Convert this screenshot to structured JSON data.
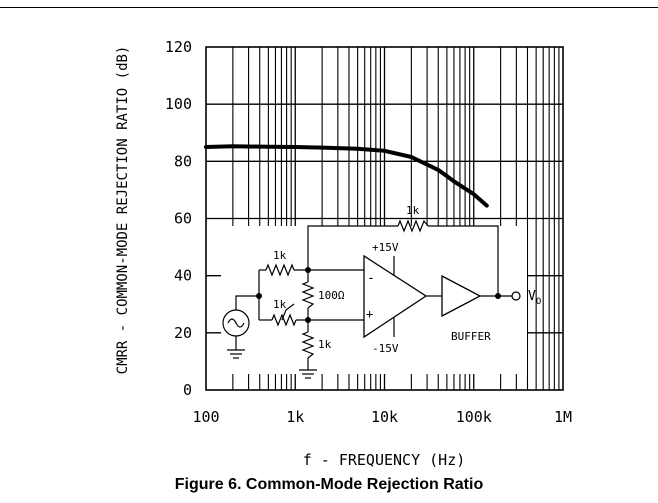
{
  "figure_caption": "Figure 6. Common-Mode Rejection Ratio",
  "chart_data": {
    "type": "line",
    "xlabel": "f - FREQUENCY (Hz)",
    "ylabel": "CMRR - COMMON-MODE REJECTION RATIO (dB)",
    "x_scale": "log",
    "xlim": [
      100,
      1000000
    ],
    "ylim": [
      0,
      120
    ],
    "xticks": [
      "100",
      "1k",
      "10k",
      "100k",
      "1M"
    ],
    "yticks": [
      "0",
      "20",
      "40",
      "60",
      "80",
      "100",
      "120"
    ],
    "grid": true,
    "series": [
      {
        "x": [
          100,
          200,
          500,
          1000,
          2000,
          5000,
          10000,
          20000,
          40000,
          60000,
          100000,
          140000
        ],
        "y": [
          85,
          85.3,
          85.1,
          85,
          84.8,
          84.4,
          83.7,
          81.5,
          77,
          73,
          68.5,
          64.5
        ]
      }
    ]
  },
  "inset_schematic": {
    "resistor_labels": [
      "1k",
      "1k",
      "1k",
      "1k",
      "100Ω"
    ],
    "supply_labels": [
      "+15V",
      "-15V"
    ],
    "buffer_label": "BUFFER",
    "output_label": "V",
    "output_subscript": "O",
    "opamp_inputs": [
      "-",
      "+"
    ]
  }
}
